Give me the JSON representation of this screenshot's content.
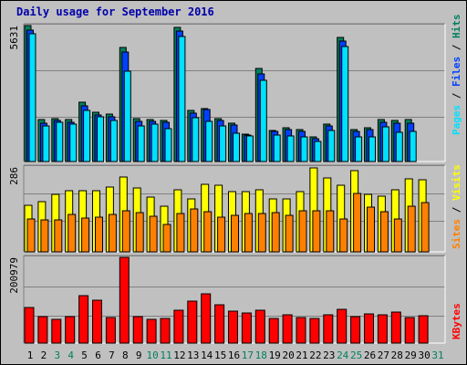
{
  "title": "Daily usage for September 2016",
  "colors": {
    "hits": "#00805c",
    "files": "#0040ff",
    "pages": "#00e0ff",
    "visits": "#ffff00",
    "sites": "#ff8000",
    "kbytes": "#ff0000",
    "weekday_label": "#000000",
    "weekend_label": "#00805c",
    "title": "#0000aa"
  },
  "chart_data": [
    {
      "type": "bar",
      "panel": "hits-files-pages",
      "categories": [
        "1",
        "2",
        "3",
        "4",
        "5",
        "6",
        "7",
        "8",
        "9",
        "10",
        "11",
        "12",
        "13",
        "14",
        "15",
        "16",
        "17",
        "18",
        "19",
        "20",
        "21",
        "22",
        "23",
        "24",
        "25",
        "26",
        "27",
        "28",
        "29",
        "30",
        "31"
      ],
      "weekend": [
        false,
        false,
        true,
        true,
        false,
        false,
        false,
        false,
        false,
        true,
        true,
        false,
        false,
        false,
        false,
        false,
        true,
        true,
        false,
        false,
        false,
        false,
        false,
        true,
        true,
        false,
        false,
        false,
        false,
        false,
        true
      ],
      "ymax_label": "5631",
      "ylim": [
        0,
        5631
      ],
      "series": [
        {
          "name": "Hits",
          "values": [
            5631,
            1720,
            1790,
            1720,
            2460,
            2030,
            1960,
            4730,
            1790,
            1750,
            1690,
            5550,
            2100,
            2200,
            1780,
            1590,
            1140,
            3840,
            1290,
            1410,
            1320,
            1010,
            1560,
            5140,
            1340,
            1400,
            1720,
            1700,
            1720,
            0,
            0
          ]
        },
        {
          "name": "Files",
          "values": [
            5460,
            1590,
            1700,
            1630,
            2290,
            1940,
            1840,
            4540,
            1660,
            1650,
            1610,
            5390,
            2000,
            2140,
            1700,
            1510,
            1100,
            3630,
            1240,
            1310,
            1240,
            960,
            1470,
            4980,
            1250,
            1330,
            1620,
            1590,
            1600,
            0,
            0
          ]
        },
        {
          "name": "Pages",
          "values": [
            5300,
            1480,
            1630,
            1540,
            2130,
            1870,
            1690,
            3740,
            1480,
            1550,
            1370,
            5190,
            1800,
            1670,
            1460,
            1170,
            1070,
            3360,
            1110,
            1040,
            1030,
            830,
            1270,
            4770,
            1030,
            1010,
            1420,
            1200,
            1240,
            0,
            0
          ]
        }
      ],
      "side_label": [
        "Pages",
        " / ",
        "Files",
        " / ",
        "Hits"
      ]
    },
    {
      "type": "bar",
      "panel": "visits-sites",
      "ymax_label": "286",
      "ylim": [
        0,
        286
      ],
      "series": [
        {
          "name": "Visits",
          "values": [
            157,
            169,
            195,
            207,
            206,
            206,
            217,
            252,
            214,
            186,
            154,
            208,
            179,
            228,
            226,
            203,
            204,
            210,
            179,
            178,
            203,
            283,
            249,
            224,
            274,
            193,
            187,
            208,
            246,
            244,
            0
          ]
        },
        {
          "name": "Sites",
          "values": [
            111,
            109,
            109,
            125,
            115,
            117,
            125,
            137,
            131,
            119,
            92,
            128,
            144,
            135,
            118,
            123,
            128,
            130,
            132,
            123,
            138,
            138,
            137,
            112,
            198,
            152,
            136,
            112,
            153,
            165,
            0
          ]
        }
      ],
      "side_label": [
        "Sites",
        " / ",
        "Visits"
      ]
    },
    {
      "type": "bar",
      "panel": "kbytes",
      "ymax_label": "200979",
      "ylim": [
        0,
        200979
      ],
      "series": [
        {
          "name": "KBytes",
          "values": [
            82600,
            61900,
            54600,
            61000,
            110400,
            101200,
            60500,
            200979,
            62400,
            55100,
            57100,
            77400,
            98000,
            114600,
            90500,
            74600,
            70400,
            76400,
            58400,
            67000,
            60900,
            58400,
            67300,
            79500,
            62100,
            67600,
            67300,
            72000,
            60700,
            63100,
            0
          ]
        }
      ],
      "side_label": [
        "KBytes"
      ]
    }
  ]
}
